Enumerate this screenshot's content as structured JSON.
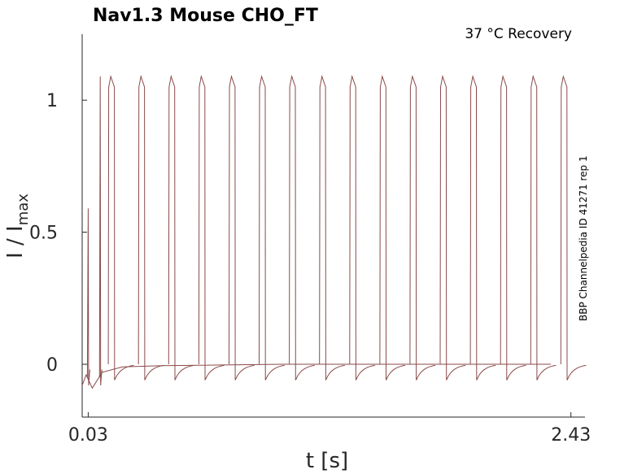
{
  "chart_data": {
    "type": "line",
    "title": "Nav1.3  Mouse  CHO_FT",
    "subtitle": "37 °C  Recovery",
    "side_note": "BBP Channelpedia ID 41271 rep 1",
    "xlabel": "t [s]",
    "ylabel_main": "I / I",
    "ylabel_sub": "max",
    "xlim": [
      0.0,
      2.5
    ],
    "ylim": [
      -0.2,
      1.25
    ],
    "x_ticks": [
      0.03,
      2.43
    ],
    "x_tick_labels": [
      "0.03",
      "2.43"
    ],
    "y_ticks": [
      0,
      0.5,
      1
    ],
    "y_tick_labels": [
      "0",
      "0.5",
      "1"
    ],
    "grid": false,
    "color": "#8b4a4a",
    "conditioning_peaks": [
      {
        "x": 0.03,
        "y": 0.59
      },
      {
        "x": 0.09,
        "y": 1.09
      }
    ],
    "test_pulses": [
      {
        "start": 0.13,
        "end": 0.16,
        "peak": 1.09,
        "end_value": 1.05
      },
      {
        "start": 0.28,
        "end": 0.31,
        "peak": 1.09,
        "end_value": 1.05
      },
      {
        "start": 0.43,
        "end": 0.46,
        "peak": 1.09,
        "end_value": 1.05
      },
      {
        "start": 0.58,
        "end": 0.61,
        "peak": 1.09,
        "end_value": 1.05
      },
      {
        "start": 0.73,
        "end": 0.76,
        "peak": 1.09,
        "end_value": 1.05
      },
      {
        "start": 0.88,
        "end": 0.91,
        "peak": 1.09,
        "end_value": 1.05
      },
      {
        "start": 1.03,
        "end": 1.06,
        "peak": 1.09,
        "end_value": 1.05
      },
      {
        "start": 1.18,
        "end": 1.21,
        "peak": 1.09,
        "end_value": 1.05
      },
      {
        "start": 1.33,
        "end": 1.36,
        "peak": 1.09,
        "end_value": 1.05
      },
      {
        "start": 1.48,
        "end": 1.51,
        "peak": 1.09,
        "end_value": 1.05
      },
      {
        "start": 1.63,
        "end": 1.66,
        "peak": 1.09,
        "end_value": 1.05
      },
      {
        "start": 1.78,
        "end": 1.81,
        "peak": 1.09,
        "end_value": 1.05
      },
      {
        "start": 1.93,
        "end": 1.96,
        "peak": 1.09,
        "end_value": 1.05
      },
      {
        "start": 2.08,
        "end": 2.11,
        "peak": 1.09,
        "end_value": 1.05
      },
      {
        "start": 2.23,
        "end": 2.26,
        "peak": 1.09,
        "end_value": 1.05
      },
      {
        "start": 2.38,
        "end": 2.41,
        "peak": 1.09,
        "end_value": 1.05
      }
    ],
    "baseline_end": 2.33,
    "tail_min": -0.06
  }
}
